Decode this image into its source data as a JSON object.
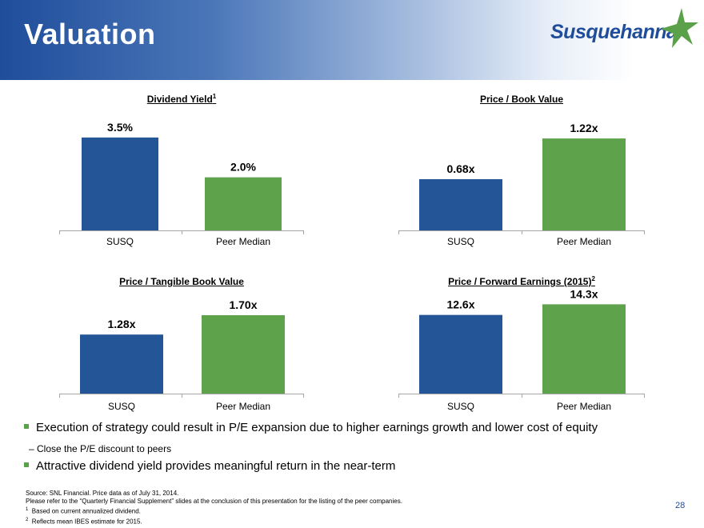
{
  "header": {
    "title": "Valuation",
    "logo_text": "Susquehanna",
    "logo_color": "#1f4d9a",
    "star_color": "#5aa14a"
  },
  "colors": {
    "susq": "#245597",
    "peer": "#5ea24b"
  },
  "chart_data": [
    {
      "type": "bar",
      "title": "Dividend Yield",
      "title_sup": "1",
      "categories": [
        "SUSQ",
        "Peer Median"
      ],
      "values": [
        3.5,
        2.0
      ],
      "labels": [
        "3.5%",
        "2.0%"
      ],
      "ylim": [
        0,
        4.4
      ]
    },
    {
      "type": "bar",
      "title": "Price / Book Value",
      "title_sup": "",
      "categories": [
        "SUSQ",
        "Peer Median"
      ],
      "values": [
        0.68,
        1.22
      ],
      "labels": [
        "0.68x",
        "1.22x"
      ],
      "ylim": [
        0,
        1.55
      ]
    },
    {
      "type": "bar",
      "title": "Price / Tangible Book Value",
      "title_sup": "",
      "categories": [
        "SUSQ",
        "Peer Median"
      ],
      "values": [
        1.28,
        1.7
      ],
      "labels": [
        "1.28x",
        "1.70x"
      ],
      "ylim": [
        0,
        2.22
      ]
    },
    {
      "type": "bar",
      "title": "Price / Forward Earnings (2015)",
      "title_sup": "2",
      "categories": [
        "SUSQ",
        "Peer Median"
      ],
      "values": [
        12.6,
        14.3
      ],
      "labels": [
        "12.6x",
        "14.3x"
      ],
      "ylim": [
        0,
        16.4
      ]
    }
  ],
  "bullets": {
    "b1": "Execution of strategy could result in P/E expansion due to higher earnings growth and lower cost of equity",
    "b2": "–  Close the P/E discount to peers",
    "b3": "Attractive dividend yield provides meaningful return in the near-term"
  },
  "footnotes": {
    "source": "Source: SNL Financial.  Price data as of July 31, 2014.",
    "refer": "Please refer to the “Quarterly Financial Supplement” slides at the conclusion of this presentation for the listing of the peer companies.",
    "n1_num": "1",
    "n1": "Based on current annualized dividend.",
    "n2_num": "2",
    "n2": "Reflects mean IBES estimate for 2015."
  },
  "page_number": "28"
}
